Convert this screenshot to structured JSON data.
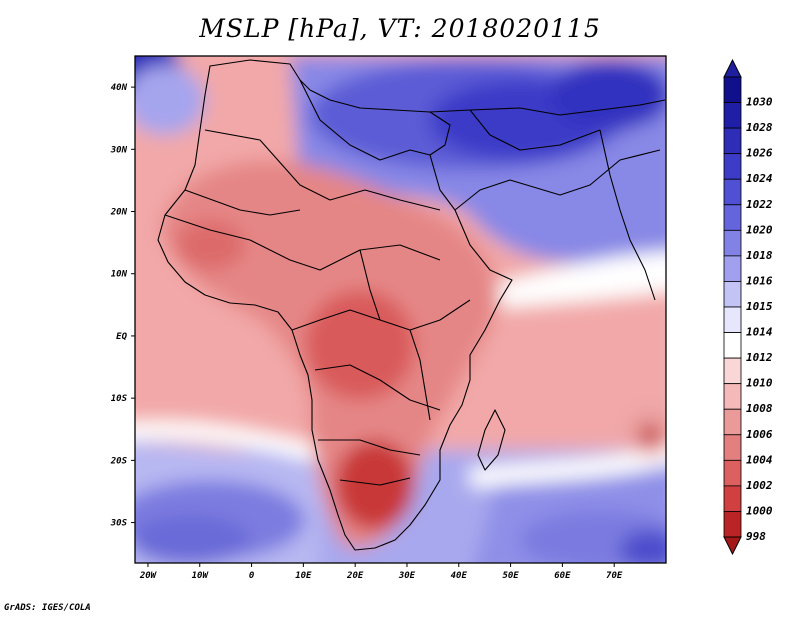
{
  "title": "MSLP [hPa], VT: 2018020115",
  "credit": "GrADS: IGES/COLA",
  "axes": {
    "lon_ticks": [
      {
        "value": -20,
        "label": "20W"
      },
      {
        "value": -10,
        "label": "10W"
      },
      {
        "value": 0,
        "label": "0"
      },
      {
        "value": 10,
        "label": "10E"
      },
      {
        "value": 20,
        "label": "20E"
      },
      {
        "value": 30,
        "label": "30E"
      },
      {
        "value": 40,
        "label": "40E"
      },
      {
        "value": 50,
        "label": "50E"
      },
      {
        "value": 60,
        "label": "60E"
      },
      {
        "value": 70,
        "label": "70E"
      }
    ],
    "lat_ticks": [
      {
        "value": 40,
        "label": "40N"
      },
      {
        "value": 30,
        "label": "30N"
      },
      {
        "value": 20,
        "label": "20N"
      },
      {
        "value": 10,
        "label": "10N"
      },
      {
        "value": 0,
        "label": "EQ"
      },
      {
        "value": -10,
        "label": "10S"
      },
      {
        "value": -20,
        "label": "20S"
      },
      {
        "value": -30,
        "label": "30S"
      }
    ],
    "lon_range": [
      -22.5,
      80
    ],
    "lat_range": [
      -36.5,
      45
    ]
  },
  "colorbar": {
    "levels": [
      {
        "label": "1030",
        "color": "#10108c"
      },
      {
        "label": "1028",
        "color": "#1e1ea6"
      },
      {
        "label": "1026",
        "color": "#2d2db8"
      },
      {
        "label": "1024",
        "color": "#3c3cc8"
      },
      {
        "label": "1022",
        "color": "#5050d4"
      },
      {
        "label": "1020",
        "color": "#6464dc"
      },
      {
        "label": "1018",
        "color": "#8282e6"
      },
      {
        "label": "1016",
        "color": "#a0a0ee"
      },
      {
        "label": "1015",
        "color": "#c3c3f6"
      },
      {
        "label": "1014",
        "color": "#e6e6fc"
      },
      {
        "label": "1012",
        "color": "#ffffff"
      },
      {
        "label": "1010",
        "color": "#fad7d7"
      },
      {
        "label": "1008",
        "color": "#f5b9b9"
      },
      {
        "label": "1006",
        "color": "#eb9a9a"
      },
      {
        "label": "1004",
        "color": "#e47f7f"
      },
      {
        "label": "1002",
        "color": "#dc6060"
      },
      {
        "label": "1000",
        "color": "#d04040"
      },
      {
        "label": "998",
        "color": "#bb2424"
      }
    ],
    "top_color": "#1e1e9e",
    "bottom_color": "#a51818"
  }
}
